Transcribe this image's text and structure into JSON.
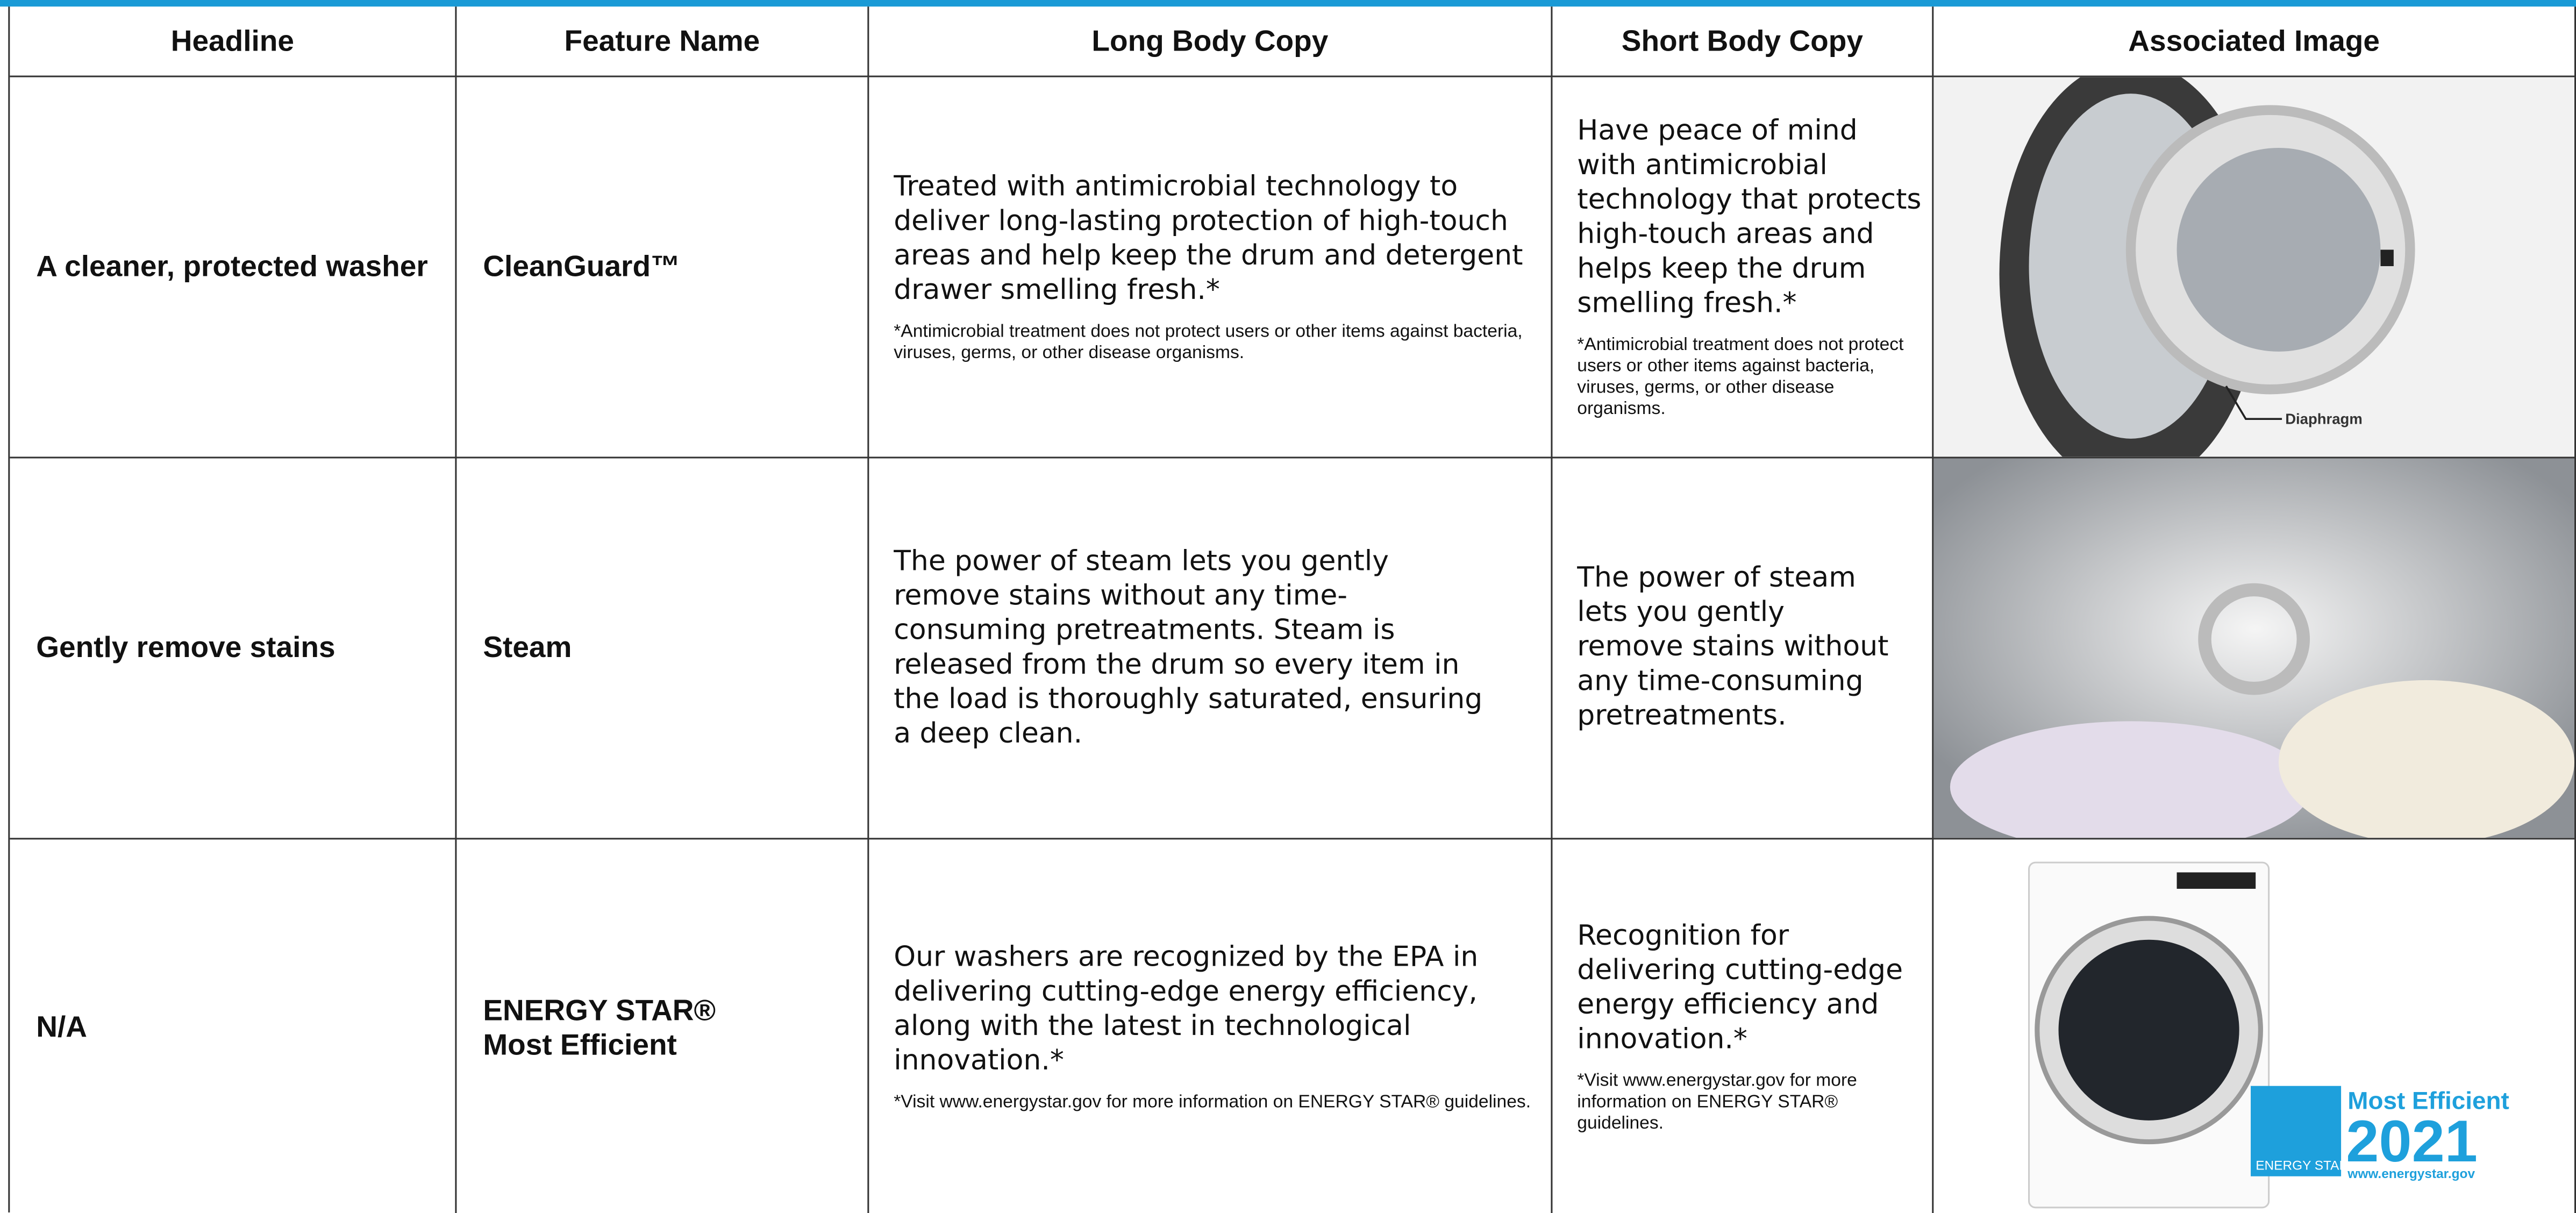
{
  "table": {
    "header": [
      "Headline",
      "Feature Name",
      "Long Body Copy",
      "Short Body Copy",
      "Associated Image"
    ],
    "rows": [
      {
        "headline": "A cleaner, protected washer",
        "feature": "CleanGuard™",
        "long_body": "Treated with antimicrobial technology to deliver long-lasting protection of high-touch areas and help keep the drum and detergent drawer smelling fresh.*",
        "long_note": "*Antimicrobial treatment does not protect users or other items against bacteria, viruses, germs, or other disease organisms.",
        "short_body": "Have peace of mind with antimicrobial technology that protects high-touch areas and helps keep the drum smelling fresh.*",
        "short_note": "*Antimicrobial treatment does not protect users or other items against bacteria, viruses, germs, or other disease organisms.",
        "image_label": "Diaphragm"
      },
      {
        "headline": "Gently remove stains",
        "feature": "Steam",
        "long_body": "The power of steam lets you gently remove stains without any time-consuming pretreatments. Steam is released from the drum so every item in the load is thoroughly saturated, ensuring a deep clean.",
        "short_body": "The power of steam lets you gently remove stains without any time-consuming pretreatments."
      },
      {
        "headline": "N/A",
        "feature": "ENERGY STAR®\nMost Efficient",
        "long_body": "Our washers are recognized by the EPA in delivering cutting-edge energy efficiency, along with the latest in technological innovation.*",
        "long_note": "*Visit www.energystar.gov for more information on ENERGY STAR® guidelines.",
        "short_body": "Recognition for delivering cutting-edge energy efficiency and innovation.*",
        "short_note": "*Visit www.energystar.gov for more information on ENERGY STAR® guidelines.",
        "logo": {
          "brand": "ENERGY STAR",
          "title": "Most Efficient",
          "year": "2021",
          "url": "www.energystar.gov"
        }
      }
    ]
  }
}
